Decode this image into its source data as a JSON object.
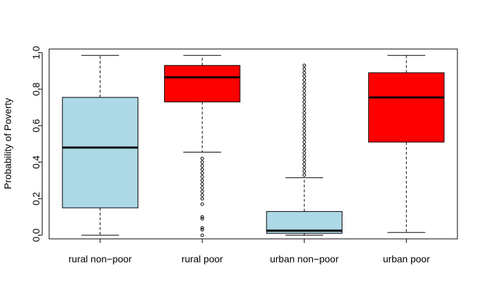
{
  "chart_data": {
    "type": "boxplot",
    "title": "",
    "xlabel": "",
    "ylabel": "Probability of Poverty",
    "ylim": [
      -0.02,
      1.02
    ],
    "y_ticks": [
      "0.0",
      "0.2",
      "0.4",
      "0.6",
      "0.8",
      "1.0"
    ],
    "y_tick_values": [
      0,
      0.2,
      0.4,
      0.6,
      0.8,
      1.0
    ],
    "grid": false,
    "colors": {
      "non_poor": "#add8e6",
      "poor": "#ff0000",
      "line": "#000000"
    },
    "categories": [
      "rural non−poor",
      "rural poor",
      "urban non−poor",
      "urban poor"
    ],
    "boxes": [
      {
        "min": 0.0,
        "q1": 0.15,
        "median": 0.48,
        "q3": 0.755,
        "max": 0.985,
        "color": "#add8e6",
        "outliers": []
      },
      {
        "min": 0.455,
        "q1": 0.73,
        "median": 0.865,
        "q3": 0.93,
        "max": 0.985,
        "color": "#ff0000",
        "outliers": [
          0.42,
          0.4,
          0.38,
          0.36,
          0.34,
          0.32,
          0.3,
          0.28,
          0.26,
          0.24,
          0.22,
          0.2,
          0.17,
          0.1,
          0.09,
          0.04,
          0.03,
          0.0
        ]
      },
      {
        "min": 0.0,
        "q1": 0.01,
        "median": 0.025,
        "q3": 0.13,
        "max": 0.315,
        "color": "#add8e6",
        "outliers": [
          0.33,
          0.35,
          0.37,
          0.39,
          0.41,
          0.43,
          0.45,
          0.47,
          0.49,
          0.51,
          0.53,
          0.55,
          0.57,
          0.59,
          0.61,
          0.63,
          0.65,
          0.67,
          0.69,
          0.71,
          0.73,
          0.75,
          0.77,
          0.79,
          0.81,
          0.83,
          0.85,
          0.87,
          0.89,
          0.91,
          0.93
        ]
      },
      {
        "min": 0.015,
        "q1": 0.51,
        "median": 0.755,
        "q3": 0.89,
        "max": 0.985,
        "color": "#ff0000",
        "outliers": []
      }
    ]
  }
}
